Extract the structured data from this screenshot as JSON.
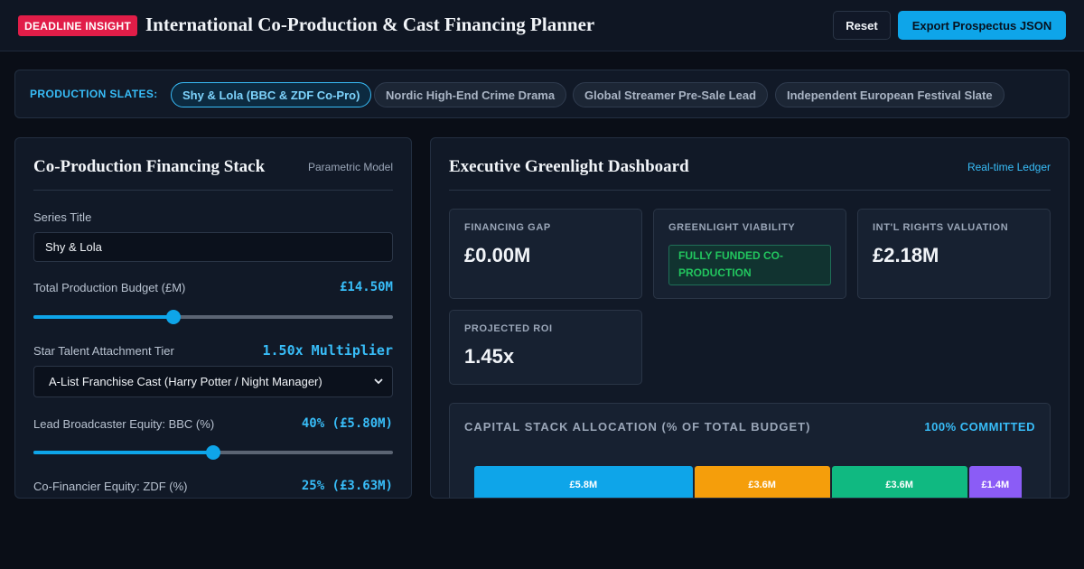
{
  "header": {
    "badge": "DEADLINE INSIGHT",
    "title": "International Co-Production & Cast Financing Planner",
    "reset_label": "Reset",
    "export_label": "Export Prospectus JSON"
  },
  "slates": {
    "label": "PRODUCTION SLATES:",
    "items": [
      {
        "label": "Shy & Lola (BBC & ZDF Co-Pro)",
        "active": true
      },
      {
        "label": "Nordic High-End Crime Drama",
        "active": false
      },
      {
        "label": "Global Streamer Pre-Sale Lead",
        "active": false
      },
      {
        "label": "Independent European Festival Slate",
        "active": false
      }
    ]
  },
  "left_panel": {
    "title": "Co-Production Financing Stack",
    "tag": "Parametric Model",
    "series_title": {
      "label": "Series Title",
      "value": "Shy & Lola"
    },
    "budget": {
      "label": "Total Production Budget (£M)",
      "value_text": "£14.50M",
      "fraction": 0.385
    },
    "talent": {
      "label": "Star Talent Attachment Tier",
      "value_text": "1.50x Multiplier",
      "selected": "A-List Franchise Cast (Harry Potter / Night Manager)"
    },
    "bbc_equity": {
      "label": "Lead Broadcaster Equity: BBC (%)",
      "value_text": "40% (£5.80M)",
      "fraction": 0.5
    },
    "zdf_equity": {
      "label": "Co-Financier Equity: ZDF (%)",
      "value_text": "25% (£3.63M)"
    }
  },
  "right_panel": {
    "title": "Executive Greenlight Dashboard",
    "tag": "Real-time Ledger",
    "metrics": {
      "gap": {
        "label": "FINANCING GAP",
        "value": "£0.00M"
      },
      "viability": {
        "label": "GREENLIGHT VIABILITY",
        "value": "FULLY FUNDED CO-PRODUCTION"
      },
      "rights": {
        "label": "INT'L RIGHTS VALUATION",
        "value": "£2.18M"
      },
      "roi": {
        "label": "PROJECTED ROI",
        "value": "1.45x"
      }
    },
    "stack": {
      "title": "CAPITAL STACK ALLOCATION (% OF TOTAL BUDGET)",
      "status": "100% COMMITTED",
      "segments": [
        {
          "label": "£5.8M",
          "amount": 5.8,
          "color": "#0ea5e9"
        },
        {
          "label": "£3.6M",
          "amount": 3.6,
          "color": "#f59e0b"
        },
        {
          "label": "£3.6M",
          "amount": 3.6,
          "color": "#10b981"
        },
        {
          "label": "£1.4M",
          "amount": 1.4,
          "color": "#8b5cf6"
        }
      ]
    }
  }
}
